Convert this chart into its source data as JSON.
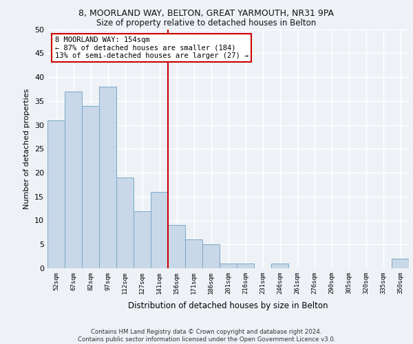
{
  "title1": "8, MOORLAND WAY, BELTON, GREAT YARMOUTH, NR31 9PA",
  "title2": "Size of property relative to detached houses in Belton",
  "xlabel": "Distribution of detached houses by size in Belton",
  "ylabel": "Number of detached properties",
  "categories": [
    "52sqm",
    "67sqm",
    "82sqm",
    "97sqm",
    "112sqm",
    "127sqm",
    "141sqm",
    "156sqm",
    "171sqm",
    "186sqm",
    "201sqm",
    "216sqm",
    "231sqm",
    "246sqm",
    "261sqm",
    "276sqm",
    "290sqm",
    "305sqm",
    "320sqm",
    "335sqm",
    "350sqm"
  ],
  "values": [
    31,
    37,
    34,
    38,
    19,
    12,
    16,
    9,
    6,
    5,
    1,
    1,
    0,
    1,
    0,
    0,
    0,
    0,
    0,
    0,
    2
  ],
  "bar_color": "#c8d8e8",
  "bar_edge_color": "#7aa8c8",
  "vline_color": "#cc0000",
  "annotation_text": "8 MOORLAND WAY: 154sqm\n← 87% of detached houses are smaller (184)\n13% of semi-detached houses are larger (27) →",
  "annotation_box_facecolor": "#ffffff",
  "annotation_box_edgecolor": "#cc0000",
  "ylim": [
    0,
    50
  ],
  "yticks": [
    0,
    5,
    10,
    15,
    20,
    25,
    30,
    35,
    40,
    45,
    50
  ],
  "footer": "Contains HM Land Registry data © Crown copyright and database right 2024.\nContains public sector information licensed under the Open Government Licence v3.0.",
  "bg_color": "#eef2f7",
  "grid_color": "#ffffff"
}
